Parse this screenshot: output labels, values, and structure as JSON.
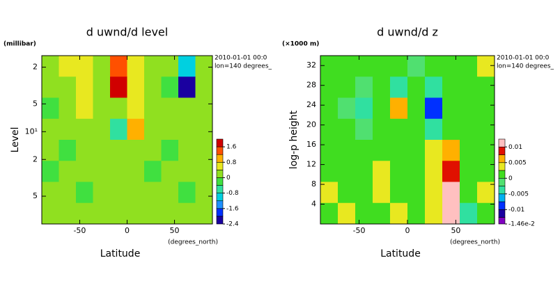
{
  "chart_data": [
    {
      "type": "contour",
      "title": "d uwnd/d level",
      "xlabel": "Latitude",
      "xunit": "(degrees_north)",
      "ylabel": "Level",
      "yunit": "(millibar)",
      "annotations": [
        "2010-01-01 00:0",
        "lon=140 degrees_"
      ],
      "xlim": [
        -90,
        90
      ],
      "xticks": [
        -50,
        0,
        50
      ],
      "ylim": [
        100,
        1.5
      ],
      "ylog": true,
      "yticks": [
        2,
        5,
        {
          "value": 10,
          "label": "10¹"
        },
        {
          "value": 20,
          "label": "2"
        },
        {
          "value": 50,
          "label": "5"
        }
      ],
      "x": [
        -81,
        -63,
        -45,
        -27,
        -9,
        9,
        27,
        45,
        63,
        81
      ],
      "z": [
        [
          0.1,
          0.5,
          0.5,
          0.1,
          1.2,
          0.4,
          0.1,
          0.1,
          -1.0,
          0.1
        ],
        [
          0.1,
          0.1,
          0.5,
          0.1,
          1.7,
          0.4,
          0.1,
          -0.3,
          -2.1,
          0.1
        ],
        [
          -0.1,
          0.1,
          0.5,
          0.1,
          0.2,
          0.6,
          0.1,
          0.1,
          0.1,
          0.1
        ],
        [
          0.1,
          0.1,
          0.1,
          0.1,
          -0.5,
          0.9,
          0.1,
          0.1,
          0.1,
          0.1
        ],
        [
          0.1,
          -0.1,
          0.1,
          0.1,
          0.1,
          0.1,
          0.1,
          -0.1,
          0.1,
          0.1
        ],
        [
          -0.1,
          0.1,
          0.1,
          0.1,
          0.1,
          0.1,
          -0.1,
          0.1,
          0.1,
          0.1
        ],
        [
          0.1,
          0.1,
          -0.1,
          0.1,
          0.1,
          0.1,
          0.1,
          0.1,
          -0.1,
          0.1
        ],
        [
          0.1,
          0.1,
          0.1,
          0.1,
          0.1,
          0.1,
          0.1,
          0.1,
          0.1,
          0.1
        ]
      ],
      "levels": [
        -2.4,
        -2,
        -1.6,
        -1.2,
        -0.8,
        -0.4,
        0,
        0.4,
        0.8,
        1.2,
        1.6,
        2
      ],
      "colors": [
        "#1a00a0",
        "#0030ff",
        "#1e90ff",
        "#00d0e0",
        "#30e0a0",
        "#40e040",
        "#90e020",
        "#e8e820",
        "#ffb000",
        "#ff5000",
        "#d00000"
      ],
      "cbar_ticks": [
        -2.4,
        -1.6,
        -0.8,
        0,
        0.8,
        1.6
      ]
    },
    {
      "type": "contour",
      "title": "d uwnd/d z",
      "xlabel": "Latitude",
      "xunit": "(degrees_north)",
      "ylabel": "log-p height",
      "yunit": "(×1000 m)",
      "annotations": [
        "2010-01-01 00:0",
        "lon=140 degrees_"
      ],
      "xlim": [
        -90,
        90
      ],
      "xticks": [
        -50,
        0,
        50
      ],
      "ylim": [
        0,
        34
      ],
      "ylog": false,
      "yticks": [
        4,
        8,
        12,
        16,
        20,
        24,
        28,
        32
      ],
      "x": [
        -81,
        -63,
        -45,
        -27,
        -9,
        9,
        27,
        45,
        63,
        81
      ],
      "z": [
        [
          0.001,
          0.001,
          0.001,
          0.001,
          0.001,
          -0.002,
          0.001,
          0.001,
          0.001,
          0.004
        ],
        [
          0.001,
          0.001,
          -0.001,
          0.001,
          -0.004,
          0.001,
          -0.003,
          0.001,
          0.001,
          0.001
        ],
        [
          0.001,
          -0.001,
          -0.003,
          0.001,
          0.006,
          0.001,
          -0.008,
          0.001,
          0.001,
          0.001
        ],
        [
          0.001,
          0.001,
          -0.002,
          0.001,
          0.001,
          0.001,
          -0.003,
          0.001,
          0.001,
          0.001
        ],
        [
          0.001,
          0.001,
          0.001,
          0.001,
          0.001,
          0.001,
          0.004,
          0.006,
          0.001,
          0.001
        ],
        [
          0.001,
          0.001,
          0.001,
          0.003,
          0.001,
          0.001,
          0.003,
          0.008,
          0.001,
          0.001
        ],
        [
          0.003,
          0.001,
          0.001,
          0.004,
          0.001,
          0.001,
          0.004,
          0.011,
          0.001,
          0.003
        ],
        [
          0.001,
          0.004,
          0.001,
          0.001,
          0.003,
          0.001,
          0.003,
          0.011,
          -0.005,
          0.001
        ]
      ],
      "levels": [
        -0.0146,
        -0.0125,
        -0.01,
        -0.0075,
        -0.005,
        -0.0025,
        0,
        0.0025,
        0.005,
        0.0075,
        0.01,
        0.0125
      ],
      "colors": [
        "#8000c0",
        "#1a00a0",
        "#0030ff",
        "#00b0f0",
        "#30e0a0",
        "#50e070",
        "#40dd20",
        "#e8e820",
        "#ffb000",
        "#e01000",
        "#ffc0c0"
      ],
      "cbar_ticks": [
        -0.01,
        -0.005,
        0,
        0.005,
        0.01,
        {
          "value": -0.0146,
          "label": "-1.46e-2"
        }
      ]
    }
  ]
}
